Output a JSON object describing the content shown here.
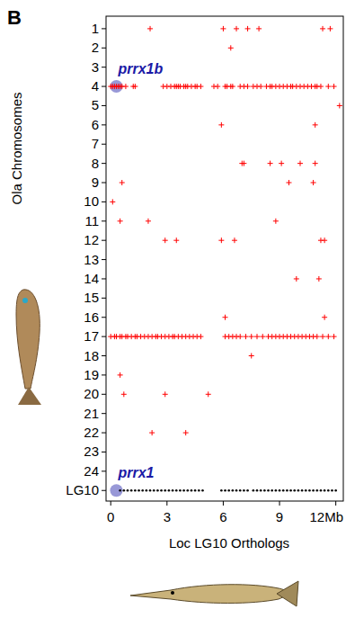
{
  "chart_data": {
    "type": "scatter",
    "panel": "B",
    "xlabel": "Loc LG10 Orthologs",
    "ylabel": "Ola Chromosomes",
    "xlim": [
      -0.25,
      12.4
    ],
    "xticks": [
      0,
      3,
      6,
      9,
      {
        "value": 12,
        "label": "12Mb"
      }
    ],
    "ylim": [
      0.35,
      25.55
    ],
    "yticks": [
      1,
      2,
      3,
      4,
      5,
      6,
      7,
      8,
      9,
      10,
      11,
      12,
      13,
      14,
      15,
      16,
      17,
      18,
      19,
      20,
      21,
      22,
      23,
      24,
      {
        "value": 25,
        "label": "LG10"
      }
    ],
    "grid": false,
    "series": [
      {
        "color": "#ff0000",
        "marker": "plus",
        "x": [
          2.1,
          6.0,
          6.7,
          7.3,
          7.9,
          11.3,
          11.7,
          6.4,
          0.0,
          0.1,
          0.2,
          0.3,
          0.4,
          0.5,
          0.6,
          0.8,
          1.2,
          1.3,
          2.8,
          3.0,
          3.2,
          3.4,
          3.5,
          3.6,
          3.7,
          3.9,
          4.0,
          4.1,
          4.3,
          4.5,
          4.6,
          4.8,
          5.5,
          5.7,
          6.1,
          6.2,
          6.4,
          6.5,
          6.9,
          7.1,
          7.3,
          7.6,
          7.8,
          8.0,
          8.3,
          8.5,
          8.6,
          8.8,
          9.0,
          9.2,
          9.4,
          9.6,
          9.7,
          9.9,
          10.1,
          10.3,
          10.5,
          10.7,
          10.9,
          11.0,
          11.2,
          11.6,
          11.9,
          12.2,
          5.9,
          10.9,
          7.0,
          7.1,
          8.5,
          9.1,
          10.1,
          10.9,
          0.6,
          9.5,
          10.8,
          0.1,
          0.5,
          2.0,
          8.8,
          2.9,
          3.5,
          5.9,
          6.6,
          11.2,
          11.4,
          9.9,
          11.1,
          6.1,
          11.4,
          0.0,
          0.2,
          0.3,
          0.5,
          0.6,
          0.8,
          0.9,
          1.1,
          1.3,
          1.4,
          1.6,
          1.8,
          2.0,
          2.2,
          2.4,
          2.5,
          2.7,
          2.9,
          3.1,
          3.3,
          3.4,
          3.6,
          3.8,
          4.0,
          4.2,
          4.4,
          4.6,
          4.8,
          6.1,
          6.3,
          6.5,
          6.7,
          6.9,
          7.2,
          7.5,
          7.8,
          8.1,
          8.4,
          8.6,
          8.8,
          9.0,
          9.2,
          9.4,
          9.6,
          9.8,
          10.0,
          10.2,
          10.4,
          10.6,
          10.8,
          11.0,
          11.3,
          11.6,
          11.9,
          7.5,
          0.5,
          0.7,
          2.9,
          5.2,
          2.2,
          4.0
        ],
        "values": [
          1,
          1,
          1,
          1,
          1,
          1,
          1,
          2,
          4,
          4,
          4,
          4,
          4,
          4,
          4,
          4,
          4,
          4,
          4,
          4,
          4,
          4,
          4,
          4,
          4,
          4,
          4,
          4,
          4,
          4,
          4,
          4,
          4,
          4,
          4,
          4,
          4,
          4,
          4,
          4,
          4,
          4,
          4,
          4,
          4,
          4,
          4,
          4,
          4,
          4,
          4,
          4,
          4,
          4,
          4,
          4,
          4,
          4,
          4,
          4,
          4,
          4,
          4,
          5,
          6,
          6,
          8,
          8,
          8,
          8,
          8,
          8,
          9,
          9,
          9,
          10,
          11,
          11,
          11,
          12,
          12,
          12,
          12,
          12,
          12,
          14,
          14,
          16,
          16,
          17,
          17,
          17,
          17,
          17,
          17,
          17,
          17,
          17,
          17,
          17,
          17,
          17,
          17,
          17,
          17,
          17,
          17,
          17,
          17,
          17,
          17,
          17,
          17,
          17,
          17,
          17,
          17,
          17,
          17,
          17,
          17,
          17,
          17,
          17,
          17,
          17,
          17,
          17,
          17,
          17,
          17,
          17,
          17,
          17,
          17,
          17,
          17,
          17,
          17,
          17,
          17,
          17,
          17,
          18,
          19,
          20,
          20,
          20,
          22,
          22
        ]
      },
      {
        "color": "#000000",
        "marker": "dot",
        "x": [
          0.5,
          0.7,
          0.9,
          1.1,
          1.3,
          1.5,
          1.7,
          1.9,
          2.1,
          2.3,
          2.5,
          2.7,
          2.9,
          3.1,
          3.3,
          3.5,
          3.7,
          3.9,
          4.1,
          4.3,
          4.5,
          4.7,
          4.9,
          5.9,
          6.1,
          6.3,
          6.5,
          6.7,
          6.9,
          7.1,
          7.3,
          7.6,
          7.8,
          8.0,
          8.2,
          8.4,
          8.6,
          8.8,
          9.0,
          9.2,
          9.4,
          9.6,
          9.8,
          10.0,
          10.2,
          10.4,
          10.6,
          10.8,
          11.0,
          11.2,
          11.4,
          11.6,
          11.8,
          12.0
        ],
        "values": [
          25,
          25,
          25,
          25,
          25,
          25,
          25,
          25,
          25,
          25,
          25,
          25,
          25,
          25,
          25,
          25,
          25,
          25,
          25,
          25,
          25,
          25,
          25,
          25,
          25,
          25,
          25,
          25,
          25,
          25,
          25,
          25,
          25,
          25,
          25,
          25,
          25,
          25,
          25,
          25,
          25,
          25,
          25,
          25,
          25,
          25,
          25,
          25,
          25,
          25,
          25,
          25,
          25,
          25
        ]
      }
    ],
    "annotations": [
      {
        "text": "prrx1b",
        "x": 0.3,
        "y": 4,
        "color": "#1a1aa6"
      },
      {
        "text": "prrx1",
        "x": 0.3,
        "y": 25,
        "color": "#1a1aa6"
      }
    ]
  }
}
